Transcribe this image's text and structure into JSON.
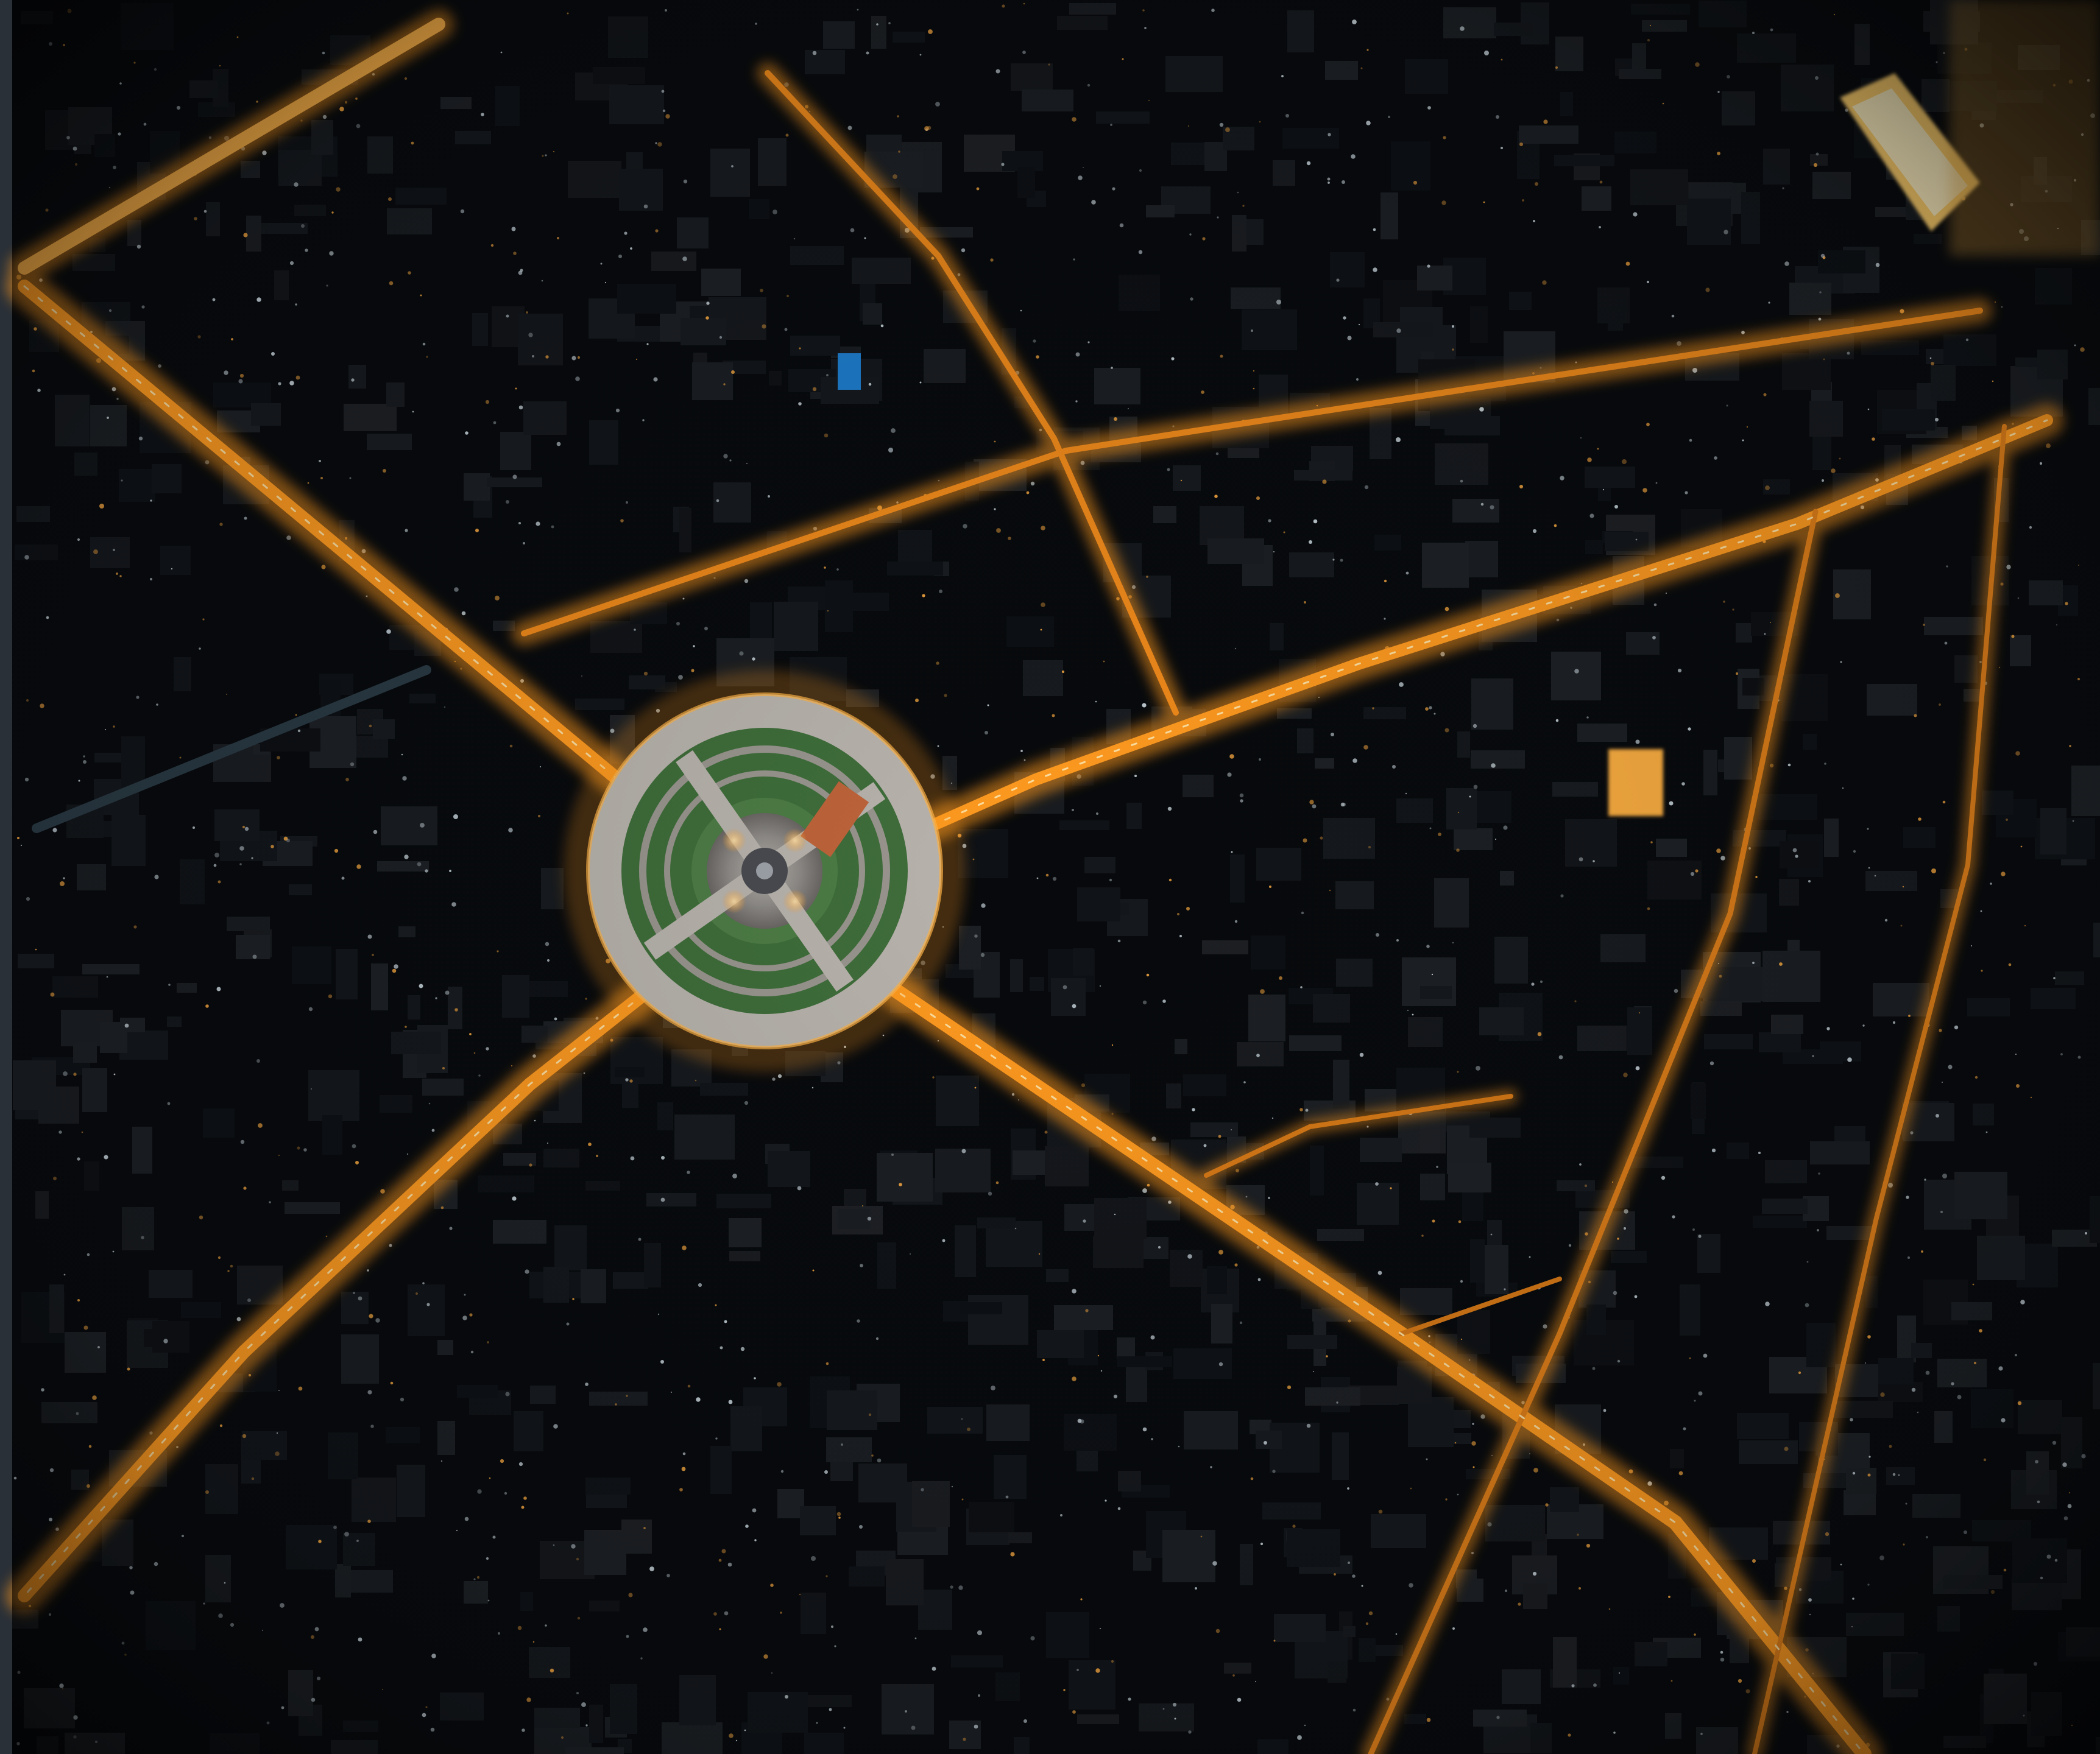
{
  "photo": {
    "subject": "",
    "colors": {
      "night_sky": "#05070a",
      "city_block": "#0d1014",
      "building_light": "#c9d6dd",
      "street_light": "#ff9a1f",
      "street_glow": "#ffb347",
      "park_green": "#3f6e3a",
      "plaza_gray": "#8f8c88",
      "left_edge": "#2a3038"
    }
  }
}
